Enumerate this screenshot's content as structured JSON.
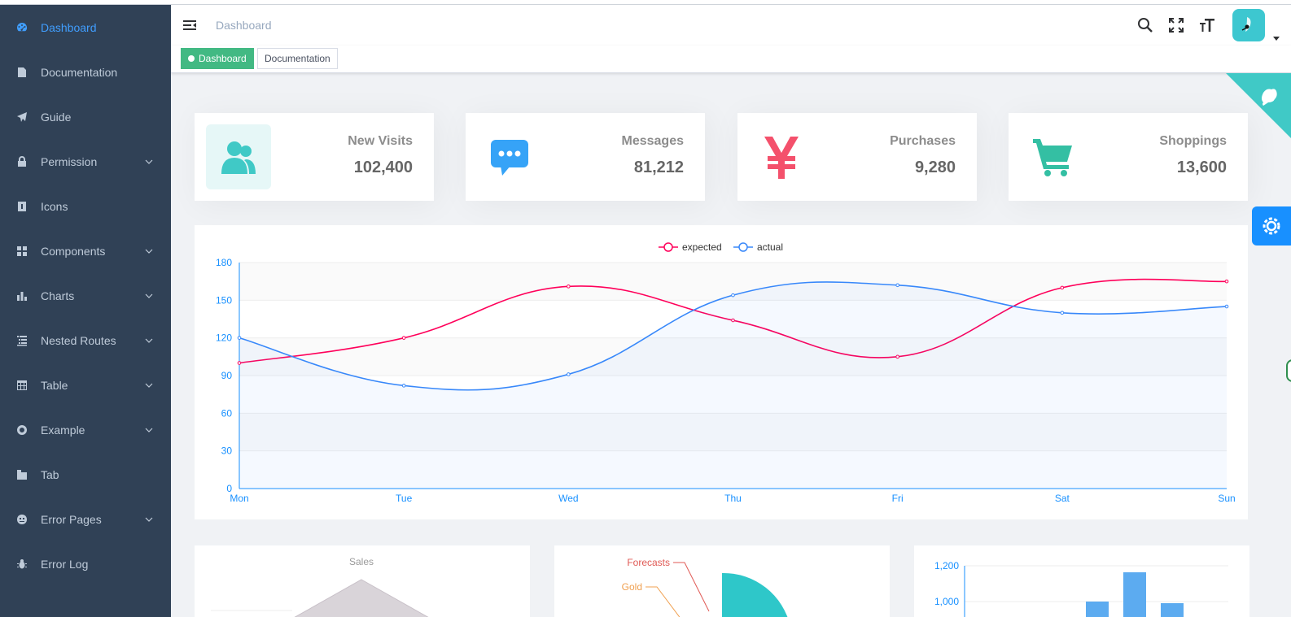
{
  "sidebar": {
    "items": [
      {
        "label": "Dashboard",
        "icon": "dashboard-icon",
        "active": true,
        "submenu": false
      },
      {
        "label": "Documentation",
        "icon": "documentation-icon",
        "active": false,
        "submenu": false
      },
      {
        "label": "Guide",
        "icon": "guide-icon",
        "active": false,
        "submenu": false
      },
      {
        "label": "Permission",
        "icon": "lock-icon",
        "active": false,
        "submenu": true
      },
      {
        "label": "Icons",
        "icon": "icon-icon",
        "active": false,
        "submenu": false
      },
      {
        "label": "Components",
        "icon": "component-icon",
        "active": false,
        "submenu": true
      },
      {
        "label": "Charts",
        "icon": "chart-icon",
        "active": false,
        "submenu": true
      },
      {
        "label": "Nested Routes",
        "icon": "nested-icon",
        "active": false,
        "submenu": true
      },
      {
        "label": "Table",
        "icon": "table-icon",
        "active": false,
        "submenu": true
      },
      {
        "label": "Example",
        "icon": "example-icon",
        "active": false,
        "submenu": true
      },
      {
        "label": "Tab",
        "icon": "tab-icon",
        "active": false,
        "submenu": false
      },
      {
        "label": "Error Pages",
        "icon": "404-icon",
        "active": false,
        "submenu": true
      },
      {
        "label": "Error Log",
        "icon": "bug-icon",
        "active": false,
        "submenu": false
      }
    ]
  },
  "navbar": {
    "breadcrumb": "Dashboard"
  },
  "tags": {
    "active": "Dashboard",
    "other": "Documentation"
  },
  "cards": [
    {
      "title": "New Visits",
      "value": "102,400",
      "icon": "peoples-icon",
      "color": "#40c9c6"
    },
    {
      "title": "Messages",
      "value": "81,212",
      "icon": "message-icon",
      "color": "#36a3f7"
    },
    {
      "title": "Purchases",
      "value": "9,280",
      "icon": "money-icon",
      "color": "#f4516c"
    },
    {
      "title": "Shoppings",
      "value": "13,600",
      "icon": "shopping-icon",
      "color": "#34bfa3"
    }
  ],
  "colors": {
    "sidebar_bg": "#304156",
    "sidebar_text": "#bfcbd9",
    "active": "#409eff",
    "tag_active": "#42b983",
    "expected": "#ff005a",
    "actual": "#3888fa",
    "axis": "#1890ff"
  },
  "chart_data": {
    "type": "line",
    "categories": [
      "Mon",
      "Tue",
      "Wed",
      "Thu",
      "Fri",
      "Sat",
      "Sun"
    ],
    "series": [
      {
        "name": "expected",
        "values": [
          100,
          120,
          161,
          134,
          105,
          160,
          165
        ]
      },
      {
        "name": "actual",
        "values": [
          120,
          82,
          91,
          154,
          162,
          140,
          145
        ]
      }
    ],
    "ylim": [
      0,
      180
    ],
    "yticks": [
      "0",
      "30",
      "60",
      "90",
      "120",
      "150",
      "180"
    ],
    "legend": "top-center",
    "grid": true
  },
  "bottom": {
    "radar_label": "Sales",
    "pie_labels": [
      "Forecasts",
      "Gold"
    ],
    "bar_yticks": [
      "1,200",
      "1,000"
    ]
  }
}
